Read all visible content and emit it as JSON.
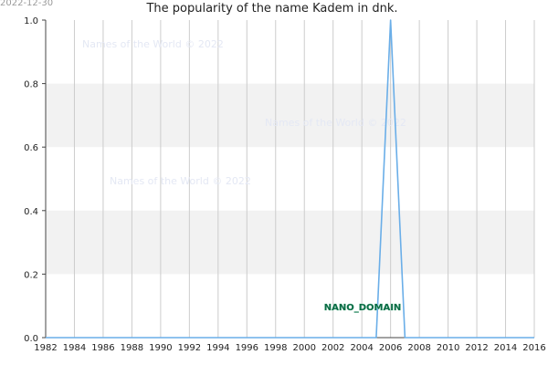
{
  "header": {
    "date": "2022-12-30"
  },
  "chart_data": {
    "type": "line",
    "title": "The popularity of the name Kadem in dnk.",
    "xlabel": "",
    "ylabel": "",
    "xlim": [
      1982,
      2016
    ],
    "ylim": [
      0,
      1
    ],
    "x_ticks": [
      "1982",
      "1984",
      "1986",
      "1988",
      "1990",
      "1992",
      "1994",
      "1996",
      "1998",
      "2000",
      "2002",
      "2004",
      "2006",
      "2008",
      "2010",
      "2012",
      "2014",
      "2016"
    ],
    "y_ticks": [
      "0.0",
      "0.2",
      "0.4",
      "0.6",
      "0.8",
      "1.0"
    ],
    "grid": true,
    "series": [
      {
        "color": "#6aaee8",
        "x": [
          1982,
          1983,
          1984,
          1985,
          1986,
          1987,
          1988,
          1989,
          1990,
          1991,
          1992,
          1993,
          1994,
          1995,
          1996,
          1997,
          1998,
          1999,
          2000,
          2001,
          2002,
          2003,
          2004,
          2005,
          2006,
          2007,
          2008,
          2009,
          2010,
          2011,
          2012,
          2013,
          2014,
          2015,
          2016
        ],
        "y": [
          0,
          0,
          0,
          0,
          0,
          0,
          0,
          0,
          0,
          0,
          0,
          0,
          0,
          0,
          0,
          0,
          0,
          0,
          0,
          0,
          0,
          0,
          0,
          0,
          1,
          0,
          0,
          0,
          0,
          0,
          0,
          0,
          0,
          0,
          0
        ]
      }
    ],
    "watermarks": [
      "Names of the World © 2022",
      "Names of the World © 2022",
      "Names of the World © 2022"
    ],
    "annotation": "NANO_DOMAIN"
  }
}
